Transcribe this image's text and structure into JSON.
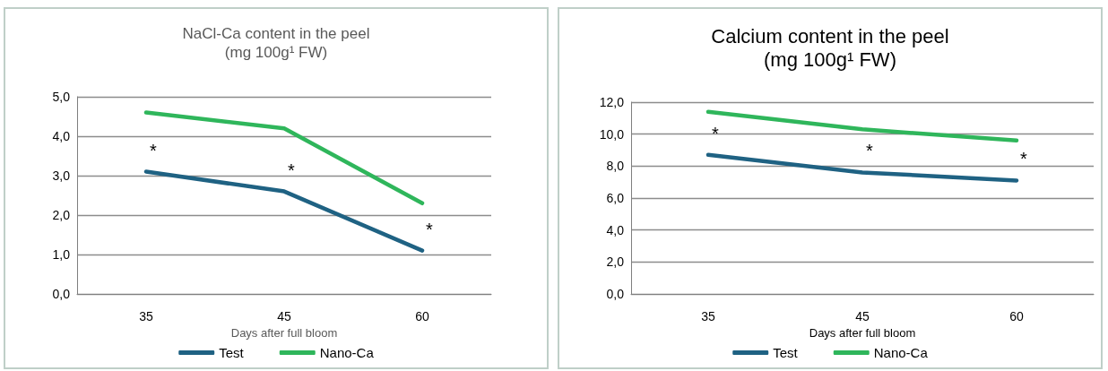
{
  "chart_data": [
    {
      "type": "line",
      "title": "NaCl-Ca content in the peel",
      "subtitle": "(mg 100g¹ FW)",
      "xlabel": "Days after full bloom",
      "categories": [
        "35",
        "45",
        "60"
      ],
      "series": [
        {
          "name": "Test",
          "color": "#1f6283",
          "values": [
            3.1,
            2.6,
            1.1
          ]
        },
        {
          "name": "Nano-Ca",
          "color": "#2fb65b",
          "values": [
            4.6,
            4.2,
            2.3
          ]
        }
      ],
      "ylim": [
        0,
        5
      ],
      "yticks": [
        {
          "value": 0,
          "label": "0,0"
        },
        {
          "value": 1,
          "label": "1,0"
        },
        {
          "value": 2,
          "label": "2,0"
        },
        {
          "value": 3,
          "label": "3,0"
        },
        {
          "value": 4,
          "label": "4,0"
        },
        {
          "value": 5,
          "label": "5,0"
        }
      ],
      "annotations": [
        {
          "text": "*",
          "x": "35",
          "y": 3.1
        },
        {
          "text": "*",
          "x": "45",
          "y": 2.6
        },
        {
          "text": "*",
          "x": "60",
          "y": 1.1
        }
      ],
      "grid": "y",
      "legend": "bottom",
      "marker": "none",
      "line_style": "solid"
    },
    {
      "type": "line",
      "title": "Calcium content in the peel",
      "subtitle": "(mg 100g¹ FW)",
      "xlabel": "Days after full bloom",
      "categories": [
        "35",
        "45",
        "60"
      ],
      "series": [
        {
          "name": "Test",
          "color": "#1f6283",
          "values": [
            8.7,
            7.6,
            7.1
          ]
        },
        {
          "name": "Nano-Ca",
          "color": "#2fb65b",
          "values": [
            11.4,
            10.3,
            9.6
          ]
        }
      ],
      "ylim": [
        0,
        12
      ],
      "yticks": [
        {
          "value": 0,
          "label": "0,0"
        },
        {
          "value": 2,
          "label": "2,0"
        },
        {
          "value": 4,
          "label": "4,0"
        },
        {
          "value": 6,
          "label": "6,0"
        },
        {
          "value": 8,
          "label": "8,0"
        },
        {
          "value": 10,
          "label": "10,0"
        },
        {
          "value": 12,
          "label": "12,0"
        }
      ],
      "annotations": [
        {
          "text": "*",
          "x": "35",
          "y": 8.7
        },
        {
          "text": "*",
          "x": "45",
          "y": 7.6
        },
        {
          "text": "*",
          "x": "60",
          "y": 7.1
        }
      ],
      "grid": "y",
      "legend": "bottom",
      "marker": "none",
      "line_style": "solid"
    }
  ]
}
